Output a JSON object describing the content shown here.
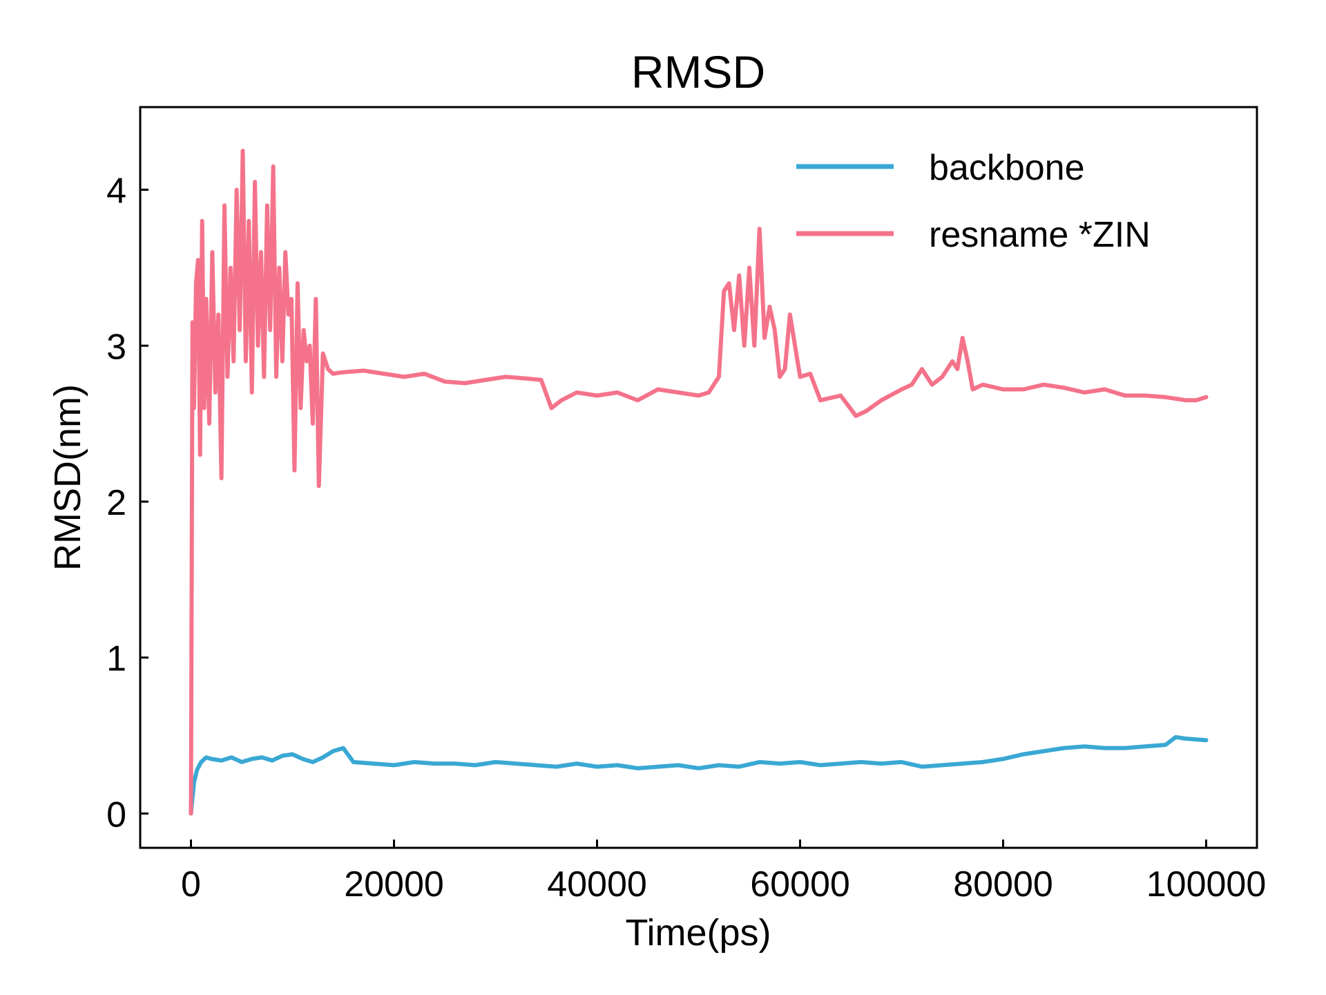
{
  "chart_data": {
    "type": "line",
    "title": "RMSD",
    "xlabel": "Time(ps)",
    "ylabel": "RMSD(nm)",
    "xlim": [
      -5000,
      105000
    ],
    "ylim": [
      -0.22,
      4.53
    ],
    "xticks": [
      0,
      20000,
      40000,
      60000,
      80000,
      100000
    ],
    "xtick_labels": [
      "0",
      "20000",
      "40000",
      "60000",
      "80000",
      "100000"
    ],
    "yticks": [
      0,
      1,
      2,
      3,
      4
    ],
    "ytick_labels": [
      "0",
      "1",
      "2",
      "3",
      "4"
    ],
    "grid": false,
    "legend_position": "top-right",
    "series": [
      {
        "name": "backbone",
        "color": "#3AA8D4",
        "x": [
          0,
          300,
          600,
          1000,
          1500,
          2000,
          3000,
          4000,
          5000,
          6000,
          7000,
          8000,
          9000,
          10000,
          11000,
          12000,
          13000,
          14000,
          15000,
          16000,
          18000,
          20000,
          22000,
          24000,
          26000,
          28000,
          30000,
          32000,
          34000,
          36000,
          38000,
          40000,
          42000,
          44000,
          46000,
          48000,
          50000,
          52000,
          54000,
          56000,
          58000,
          60000,
          62000,
          64000,
          66000,
          68000,
          70000,
          72000,
          74000,
          76000,
          78000,
          80000,
          82000,
          84000,
          86000,
          88000,
          90000,
          92000,
          94000,
          96000,
          97000,
          98000,
          100000
        ],
        "y": [
          0.0,
          0.2,
          0.28,
          0.33,
          0.36,
          0.35,
          0.34,
          0.36,
          0.33,
          0.35,
          0.36,
          0.34,
          0.37,
          0.38,
          0.35,
          0.33,
          0.36,
          0.4,
          0.42,
          0.33,
          0.32,
          0.31,
          0.33,
          0.32,
          0.32,
          0.31,
          0.33,
          0.32,
          0.31,
          0.3,
          0.32,
          0.3,
          0.31,
          0.29,
          0.3,
          0.31,
          0.29,
          0.31,
          0.3,
          0.33,
          0.32,
          0.33,
          0.31,
          0.32,
          0.33,
          0.32,
          0.33,
          0.3,
          0.31,
          0.32,
          0.33,
          0.35,
          0.38,
          0.4,
          0.42,
          0.43,
          0.42,
          0.42,
          0.43,
          0.44,
          0.49,
          0.48,
          0.47
        ]
      },
      {
        "name": "resname *ZIN",
        "color": "#F4738A",
        "x": [
          0,
          150,
          300,
          500,
          700,
          900,
          1100,
          1300,
          1500,
          1800,
          2100,
          2400,
          2700,
          3000,
          3300,
          3600,
          3900,
          4200,
          4500,
          4800,
          5100,
          5400,
          5700,
          6000,
          6300,
          6600,
          6900,
          7200,
          7500,
          7800,
          8100,
          8400,
          8700,
          9000,
          9300,
          9600,
          9900,
          10200,
          10500,
          10800,
          11100,
          11400,
          11700,
          12000,
          12300,
          12600,
          13000,
          13500,
          14000,
          15000,
          17000,
          19000,
          21000,
          23000,
          25000,
          27000,
          29000,
          31000,
          33000,
          34500,
          35500,
          36500,
          38000,
          40000,
          42000,
          44000,
          46000,
          48000,
          50000,
          51000,
          52000,
          52500,
          53000,
          53500,
          54000,
          54500,
          55000,
          55500,
          56000,
          56500,
          57000,
          57500,
          58000,
          58500,
          59000,
          60000,
          61000,
          62000,
          64000,
          65500,
          66500,
          68000,
          70000,
          71000,
          72000,
          73000,
          74000,
          75000,
          75500,
          76000,
          76500,
          77000,
          78000,
          80000,
          82000,
          84000,
          86000,
          88000,
          90000,
          92000,
          94000,
          96000,
          97000,
          98000,
          99000,
          100000
        ],
        "y": [
          0.0,
          3.15,
          2.6,
          3.4,
          3.55,
          2.3,
          3.8,
          2.6,
          3.3,
          2.5,
          3.6,
          2.7,
          3.2,
          2.15,
          3.9,
          2.8,
          3.5,
          2.9,
          4.0,
          3.1,
          4.25,
          2.9,
          3.8,
          2.7,
          4.05,
          3.0,
          3.6,
          2.8,
          3.9,
          3.1,
          4.15,
          2.8,
          3.5,
          2.9,
          3.6,
          3.2,
          3.3,
          2.2,
          3.4,
          2.6,
          3.1,
          2.9,
          3.0,
          2.5,
          3.3,
          2.1,
          2.95,
          2.85,
          2.82,
          2.83,
          2.84,
          2.82,
          2.8,
          2.82,
          2.77,
          2.76,
          2.78,
          2.8,
          2.79,
          2.78,
          2.6,
          2.65,
          2.7,
          2.68,
          2.7,
          2.65,
          2.72,
          2.7,
          2.68,
          2.7,
          2.8,
          3.35,
          3.4,
          3.1,
          3.45,
          3.0,
          3.5,
          3.0,
          3.75,
          3.05,
          3.25,
          3.1,
          2.8,
          2.85,
          3.2,
          2.8,
          2.82,
          2.65,
          2.68,
          2.55,
          2.58,
          2.65,
          2.72,
          2.75,
          2.85,
          2.75,
          2.8,
          2.9,
          2.85,
          3.05,
          2.9,
          2.72,
          2.75,
          2.72,
          2.72,
          2.75,
          2.73,
          2.7,
          2.72,
          2.68,
          2.68,
          2.67,
          2.66,
          2.65,
          2.65,
          2.67
        ]
      }
    ]
  }
}
